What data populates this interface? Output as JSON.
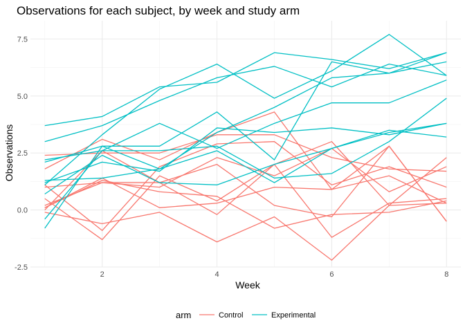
{
  "chart_data": {
    "type": "line",
    "title": "Observations for each subject, by week and study arm",
    "xlabel": "Week",
    "ylabel": "Observations",
    "xlim": [
      0.75,
      8.25
    ],
    "ylim": [
      -2.5,
      8.3
    ],
    "x_ticks": [
      2,
      4,
      6,
      8
    ],
    "y_ticks": [
      -2.5,
      0.0,
      2.5,
      5.0,
      7.5
    ],
    "y_tick_labels": [
      "-2.5",
      "0.0",
      "2.5",
      "5.0",
      "7.5"
    ],
    "grid": true,
    "legend": {
      "title": "arm",
      "position": "bottom",
      "entries": [
        {
          "label": "Control",
          "color": "#F8766D"
        },
        {
          "label": "Experimental",
          "color": "#00BFC4"
        }
      ]
    },
    "x": [
      1,
      2,
      3,
      4,
      5,
      6,
      7,
      8
    ],
    "series": [
      {
        "arm": "Control",
        "color": "#F8766D",
        "values": [
          2.4,
          2.5,
          2.5,
          3.3,
          3.3,
          2.3,
          1.8,
          1.7
        ]
      },
      {
        "arm": "Control",
        "color": "#F8766D",
        "values": [
          1.8,
          3.1,
          2.2,
          3.4,
          4.3,
          0.9,
          2.8,
          -0.5
        ]
      },
      {
        "arm": "Control",
        "color": "#F8766D",
        "values": [
          1.1,
          -0.9,
          1.9,
          2.9,
          3.0,
          1.1,
          1.9,
          1.0
        ]
      },
      {
        "arm": "Control",
        "color": "#F8766D",
        "values": [
          1.0,
          1.2,
          1.0,
          2.3,
          1.5,
          2.7,
          0.8,
          1.9
        ]
      },
      {
        "arm": "Control",
        "color": "#F8766D",
        "values": [
          0.5,
          -1.3,
          1.5,
          0.4,
          2.0,
          3.0,
          0.2,
          2.3
        ]
      },
      {
        "arm": "Control",
        "color": "#F8766D",
        "values": [
          0.1,
          1.4,
          0.1,
          0.3,
          1.0,
          0.9,
          1.5,
          0.3
        ]
      },
      {
        "arm": "Control",
        "color": "#F8766D",
        "values": [
          0.0,
          2.6,
          1.2,
          -0.2,
          2.0,
          -1.2,
          0.3,
          0.5
        ]
      },
      {
        "arm": "Control",
        "color": "#F8766D",
        "values": [
          -0.1,
          -0.6,
          -0.1,
          -1.4,
          -0.3,
          -2.2,
          0.2,
          0.3
        ]
      },
      {
        "arm": "Control",
        "color": "#F8766D",
        "values": [
          0.2,
          1.2,
          1.2,
          2.0,
          0.2,
          -0.3,
          2.8,
          -0.5
        ]
      },
      {
        "arm": "Control",
        "color": "#F8766D",
        "values": [
          0.1,
          1.3,
          0.8,
          0.6,
          -0.8,
          -0.2,
          -0.1,
          0.4
        ]
      },
      {
        "arm": "Experimental",
        "color": "#00BFC4",
        "values": [
          3.7,
          4.1,
          5.4,
          5.6,
          6.9,
          6.6,
          6.2,
          6.9
        ]
      },
      {
        "arm": "Experimental",
        "color": "#00BFC4",
        "values": [
          3.0,
          3.7,
          4.8,
          5.8,
          6.3,
          5.4,
          6.4,
          5.9
        ]
      },
      {
        "arm": "Experimental",
        "color": "#00BFC4",
        "values": [
          1.1,
          3.3,
          5.3,
          6.4,
          4.9,
          6.1,
          7.7,
          5.9
        ]
      },
      {
        "arm": "Experimental",
        "color": "#00BFC4",
        "values": [
          2.1,
          2.8,
          2.8,
          4.3,
          2.2,
          6.5,
          6.0,
          6.5
        ]
      },
      {
        "arm": "Experimental",
        "color": "#00BFC4",
        "values": [
          2.2,
          2.6,
          3.8,
          2.7,
          3.8,
          4.7,
          4.7,
          5.7
        ]
      },
      {
        "arm": "Experimental",
        "color": "#00BFC4",
        "values": [
          1.2,
          2.1,
          1.7,
          3.6,
          3.4,
          3.6,
          3.3,
          3.8
        ]
      },
      {
        "arm": "Experimental",
        "color": "#00BFC4",
        "values": [
          0.7,
          2.4,
          1.2,
          1.1,
          2.0,
          2.7,
          3.5,
          3.2
        ]
      },
      {
        "arm": "Experimental",
        "color": "#00BFC4",
        "values": [
          -0.4,
          2.6,
          2.6,
          2.8,
          1.4,
          1.6,
          3.0,
          4.9
        ]
      },
      {
        "arm": "Experimental",
        "color": "#00BFC4",
        "values": [
          -0.8,
          2.8,
          1.8,
          3.4,
          4.5,
          5.8,
          6.0,
          6.9
        ]
      },
      {
        "arm": "Experimental",
        "color": "#00BFC4",
        "values": [
          1.3,
          1.4,
          1.8,
          2.6,
          1.2,
          2.7,
          3.4,
          3.8
        ]
      }
    ]
  }
}
